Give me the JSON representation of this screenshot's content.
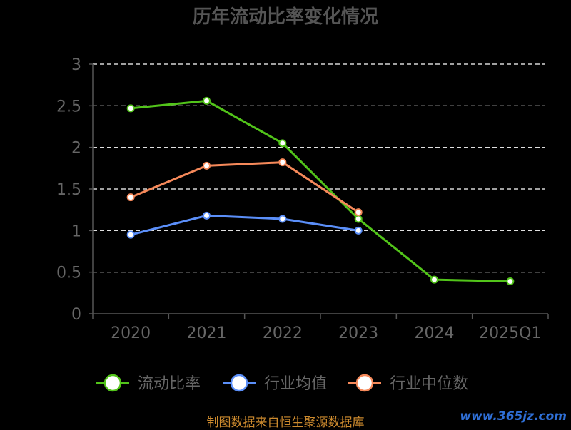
{
  "chart_data": {
    "type": "line",
    "title": "历年流动比率变化情况",
    "categories": [
      "2020",
      "2021",
      "2022",
      "2023",
      "2024",
      "2025Q1"
    ],
    "ylim": [
      0,
      3
    ],
    "yticks": [
      "0",
      "0.5",
      "1",
      "1.5",
      "2",
      "2.5",
      "3"
    ],
    "grid": true,
    "legend_position": "bottom",
    "series": [
      {
        "name": "流动比率",
        "color": "#52c41a",
        "values": [
          2.47,
          2.56,
          2.05,
          1.14,
          0.41,
          0.39
        ]
      },
      {
        "name": "行业均值",
        "color": "#5b8ff9",
        "values": [
          0.95,
          1.18,
          1.14,
          1.0,
          null,
          null
        ]
      },
      {
        "name": "行业中位数",
        "color": "#f6895a",
        "values": [
          1.4,
          1.78,
          1.82,
          1.22,
          null,
          null
        ]
      }
    ]
  },
  "footer": {
    "source": "制图数据来自恒生聚源数据库",
    "watermark": "www.365jz.com"
  }
}
